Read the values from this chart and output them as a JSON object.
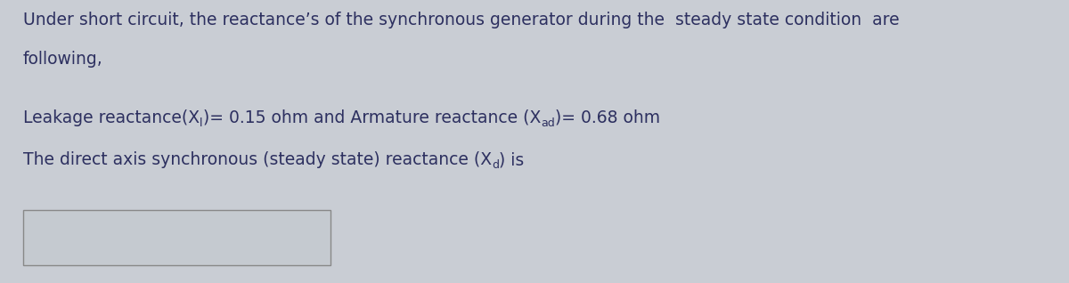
{
  "bg_color": "#c9cdd4",
  "text_color": "#2d3060",
  "box_fill": "#c5cad0",
  "line1": "Under short circuit, the reactance’s of the synchronous generator during the  steady state condition  are",
  "line2": "following,",
  "line3_part1": "Leakage reactance(X",
  "line3_sub1": "l",
  "line3_part2": ")= 0.15 ohm and Armature reactance (X",
  "line3_sub2": "ad",
  "line3_part3": ")= 0.68 ohm",
  "line4_part1": "The direct axis synchronous (steady state) reactance (X",
  "line4_sub": "d",
  "line4_part2": ") is",
  "font_size": 13.5,
  "font_size_sub": 9.0,
  "figwidth": 12.0,
  "figheight": 3.18,
  "dpi": 100
}
